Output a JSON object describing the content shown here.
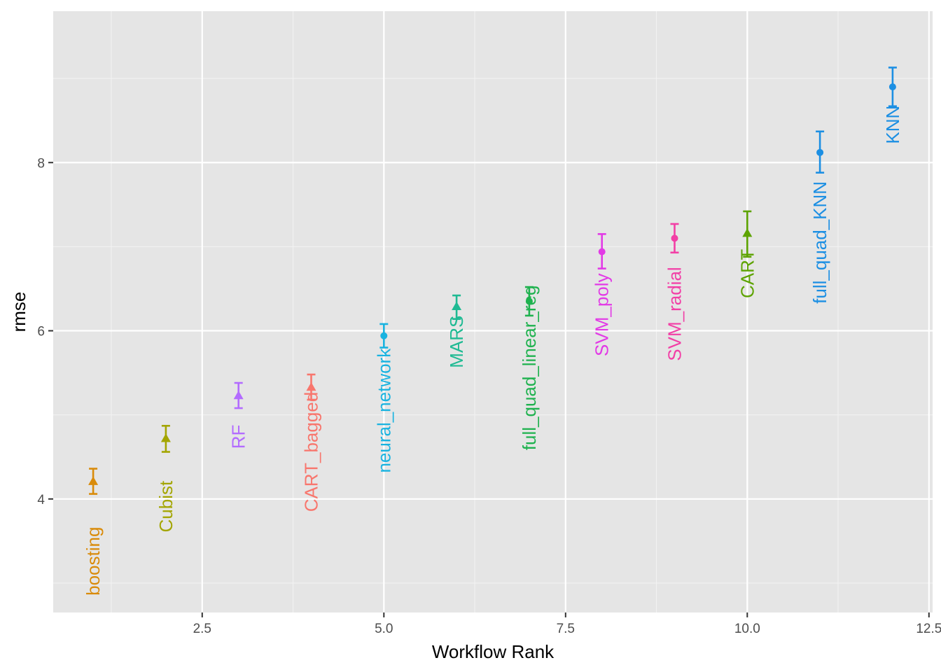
{
  "chart_data": {
    "type": "scatter",
    "title": "",
    "xlabel": "Workflow Rank",
    "ylabel": "rmse",
    "xlim": [
      0.45,
      12.55
    ],
    "ylim": [
      2.65,
      9.8
    ],
    "x_ticks": [
      2.5,
      5.0,
      7.5,
      10.0,
      12.5
    ],
    "x_tick_labels": [
      "2.5",
      "5.0",
      "7.5",
      "10.0",
      "12.5"
    ],
    "y_ticks": [
      4,
      6,
      8
    ],
    "y_tick_labels": [
      "4",
      "6",
      "8"
    ],
    "grid": true,
    "legend": "none",
    "points": [
      {
        "rank": 1,
        "label": "boosting",
        "rmse": 4.21,
        "lower": 4.06,
        "upper": 4.36,
        "marker": "triangle",
        "color": "#D98B0A"
      },
      {
        "rank": 2,
        "label": "Cubist",
        "rmse": 4.72,
        "lower": 4.56,
        "upper": 4.87,
        "marker": "triangle",
        "color": "#A3A500"
      },
      {
        "rank": 3,
        "label": "RF",
        "rmse": 5.23,
        "lower": 5.08,
        "upper": 5.38,
        "marker": "triangle",
        "color": "#B36BFF"
      },
      {
        "rank": 4,
        "label": "CART_bagged",
        "rmse": 5.33,
        "lower": 5.18,
        "upper": 5.48,
        "marker": "triangle",
        "color": "#F8766D"
      },
      {
        "rank": 5,
        "label": "neural_network",
        "rmse": 5.94,
        "lower": 5.8,
        "upper": 6.08,
        "marker": "circle",
        "color": "#19B3E0"
      },
      {
        "rank": 6,
        "label": "MARS",
        "rmse": 6.29,
        "lower": 6.14,
        "upper": 6.42,
        "marker": "triangle",
        "color": "#1FBA93"
      },
      {
        "rank": 7,
        "label": "full_quad_linear_reg",
        "rmse": 6.35,
        "lower": 6.18,
        "upper": 6.52,
        "marker": "circle",
        "color": "#1FB24F"
      },
      {
        "rank": 8,
        "label": "SVM_poly",
        "rmse": 6.94,
        "lower": 6.74,
        "upper": 7.15,
        "marker": "circle",
        "color": "#E23AE6"
      },
      {
        "rank": 9,
        "label": "SVM_radial",
        "rmse": 7.1,
        "lower": 6.93,
        "upper": 7.27,
        "marker": "circle",
        "color": "#F23FA6"
      },
      {
        "rank": 10,
        "label": "CART",
        "rmse": 7.16,
        "lower": 6.88,
        "upper": 7.42,
        "marker": "triangle",
        "color": "#5DA301"
      },
      {
        "rank": 11,
        "label": "full_quad_KNN",
        "rmse": 8.12,
        "lower": 7.88,
        "upper": 8.37,
        "marker": "circle",
        "color": "#1C8FE3"
      },
      {
        "rank": 12,
        "label": "KNN",
        "rmse": 8.9,
        "lower": 8.67,
        "upper": 9.13,
        "marker": "circle",
        "color": "#1C8FE3"
      }
    ],
    "label_y_positions": [
      3.26,
      3.91,
      4.74,
      4.56,
      5.05,
      5.87,
      5.56,
      6.19,
      6.2,
      6.68,
      7.05,
      8.45
    ]
  }
}
